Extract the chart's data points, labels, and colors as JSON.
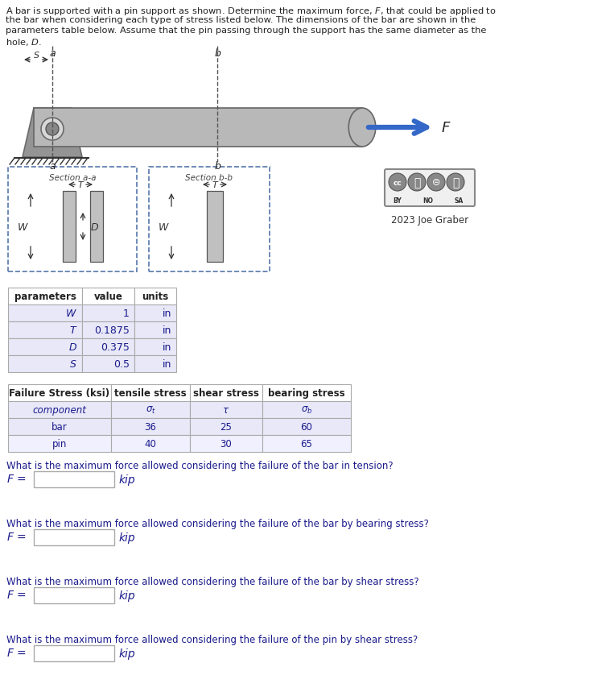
{
  "bg_color": "#ffffff",
  "text_color": "#1a1a8c",
  "title_lines": [
    "A bar is supported with a pin support as shown. Determine the maximum force, $F$, that could be applied to",
    "the bar when considering each type of stress listed below. The dimensions of the bar are shown in the",
    "parameters table below. Assume that the pin passing through the support has the same diameter as the",
    "hole, $D$."
  ],
  "table1_headers": [
    "parameters",
    "value",
    "units"
  ],
  "table1_rows": [
    [
      "$W$",
      "1",
      "in"
    ],
    [
      "$T$",
      "0.1875",
      "in"
    ],
    [
      "$D$",
      "0.375",
      "in"
    ],
    [
      "$S$",
      "0.5",
      "in"
    ]
  ],
  "table2_headers": [
    "Failure Stress (ksi)",
    "tensile stress",
    "shear stress",
    "bearing stress"
  ],
  "table2_sym_row": [
    "component",
    "$\\sigma_t$",
    "$\\tau$",
    "$\\sigma_b$"
  ],
  "table2_row2": [
    "bar",
    "36",
    "25",
    "60"
  ],
  "table2_row3": [
    "pin",
    "40",
    "30",
    "65"
  ],
  "q1": "What is the maximum force allowed considering the failure of the bar in tension?",
  "q2": "What is the maximum force allowed considering the failure of the bar by bearing stress?",
  "q3": "What is the maximum force allowed considering the failure of the bar by shear stress?",
  "q4": "What is the maximum force allowed considering the failure of the pin by shear stress?",
  "arrow_color": "#3468c8",
  "bar_gray": "#b8b8b8",
  "support_gray": "#949494",
  "support_dark": "#6a6a6a",
  "section_box_color": "#5577aa",
  "table_row_bg": "#e8e8f8",
  "table_alt_bg": "#f0f0ff",
  "table_header_bg": "#ffffff",
  "table_border": "#aaaaaa",
  "ground_color": "#333333",
  "cc_border": "#888888"
}
